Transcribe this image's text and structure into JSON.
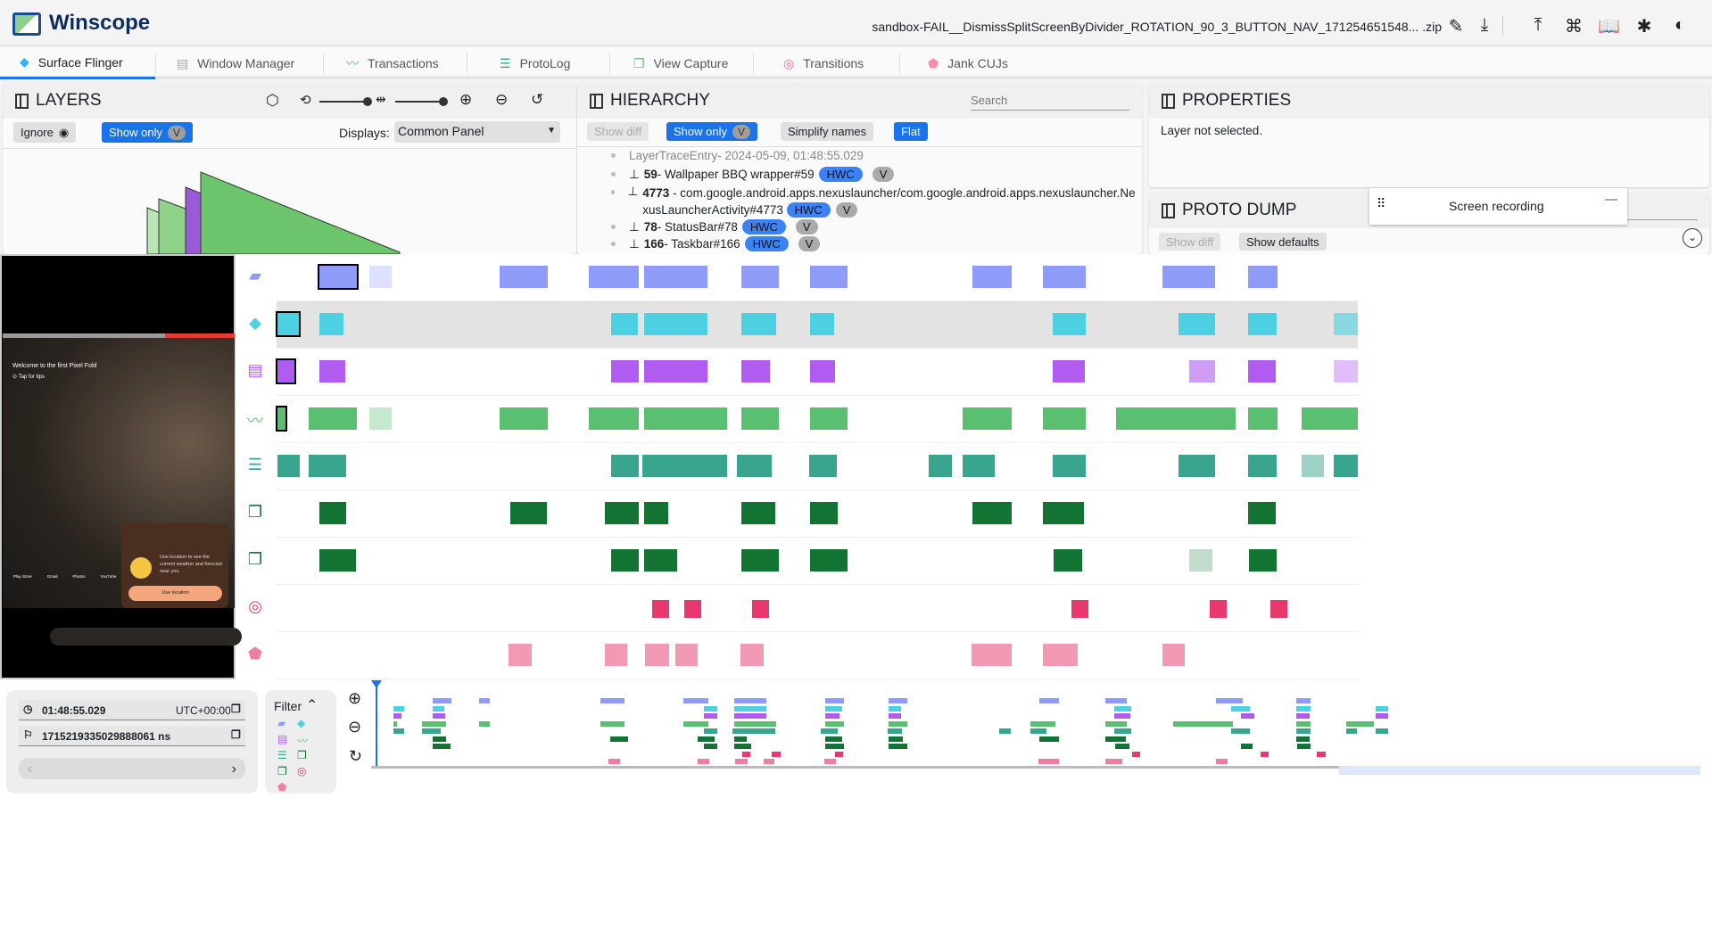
{
  "app": {
    "title": "Winscope",
    "file_name": "sandbox-FAIL__DismissSplitScreenByDivider_ROTATION_90_3_BUTTON_NAV_171254651548... .zip",
    "toolbar_icons": [
      "edit-icon",
      "download-icon",
      "upload-icon",
      "shortcuts-icon",
      "docs-icon",
      "bug-icon",
      "theme-icon"
    ]
  },
  "tabs": [
    {
      "label": "Surface Flinger",
      "icon": "layers-icon",
      "active": true
    },
    {
      "label": "Window Manager",
      "icon": "window-icon"
    },
    {
      "label": "Transactions",
      "icon": "trend-icon"
    },
    {
      "label": "ProtoLog",
      "icon": "list-icon"
    },
    {
      "label": "View Capture",
      "icon": "copy-icon"
    },
    {
      "label": "Transitions",
      "icon": "rings-icon"
    },
    {
      "label": "Jank CUJs",
      "icon": "label-icon"
    }
  ],
  "layers": {
    "title": "LAYERS",
    "ignore": "Ignore",
    "show_only": "Show only",
    "v": "V",
    "displays_label": "Displays:",
    "displays_value": "Common Panel"
  },
  "hierarchy": {
    "title": "HIERARCHY",
    "search_placeholder": "Search",
    "show_diff": "Show diff",
    "show_only": "Show only",
    "v": "V",
    "simplify": "Simplify names",
    "flat": "Flat",
    "root": {
      "name": "LayerTraceEntry",
      "time": " - 2024-05-09, 01:48:55.029"
    },
    "items": [
      {
        "id": "59",
        "name": " - Wallpaper BBQ wrapper#59",
        "chip": "HWC",
        "v": "V"
      },
      {
        "id": "4773",
        "name": " - com.google.android.apps.nexuslauncher/com.google.android.apps.nexuslauncher.NexusLauncherActivity#4773",
        "chip": "HWC",
        "v": "V"
      },
      {
        "id": "78",
        "name": " - StatusBar#78",
        "chip": "HWC",
        "v": "V"
      },
      {
        "id": "166",
        "name": " - Taskbar#166",
        "chip": "HWC",
        "v": "V"
      }
    ]
  },
  "properties": {
    "title": "PROPERTIES",
    "empty": "Layer not selected.",
    "screen_recording": "Screen recording"
  },
  "proto_dump": {
    "title": "PROTO DUMP",
    "search_placeholder": "Search",
    "show_diff": "Show diff",
    "show_defaults": "Show defaults"
  },
  "device": {
    "welcome": "Welcome to the first Pixel Fold",
    "tap": "Tap for tips",
    "weather": "Use location to see the current weather and forecast near you",
    "use_location": "Use location",
    "apps": [
      "Play Store",
      "Gmail",
      "Photos",
      "YouTube"
    ]
  },
  "timeline": {
    "rows": [
      {
        "icon": "video-icon",
        "color": "#8f9cf7"
      },
      {
        "icon": "layers-icon",
        "color": "#4dd0e1"
      },
      {
        "icon": "window-icon",
        "color": "#b05cf0"
      },
      {
        "icon": "trend-icon",
        "color": "#5bbf72"
      },
      {
        "icon": "list-icon",
        "color": "#3aa58e"
      },
      {
        "icon": "copy-icon",
        "color": "#137333"
      },
      {
        "icon": "copy-icon",
        "color": "#137333"
      },
      {
        "icon": "rings-icon",
        "color": "#e8386e"
      },
      {
        "icon": "label-icon",
        "color": "#ef7fa0"
      }
    ]
  },
  "time": {
    "timestamp": "01:48:55.029",
    "timezone": "UTC+00:00",
    "ns": "1715219335029888061 ns"
  },
  "filter": {
    "label": "Filter"
  }
}
